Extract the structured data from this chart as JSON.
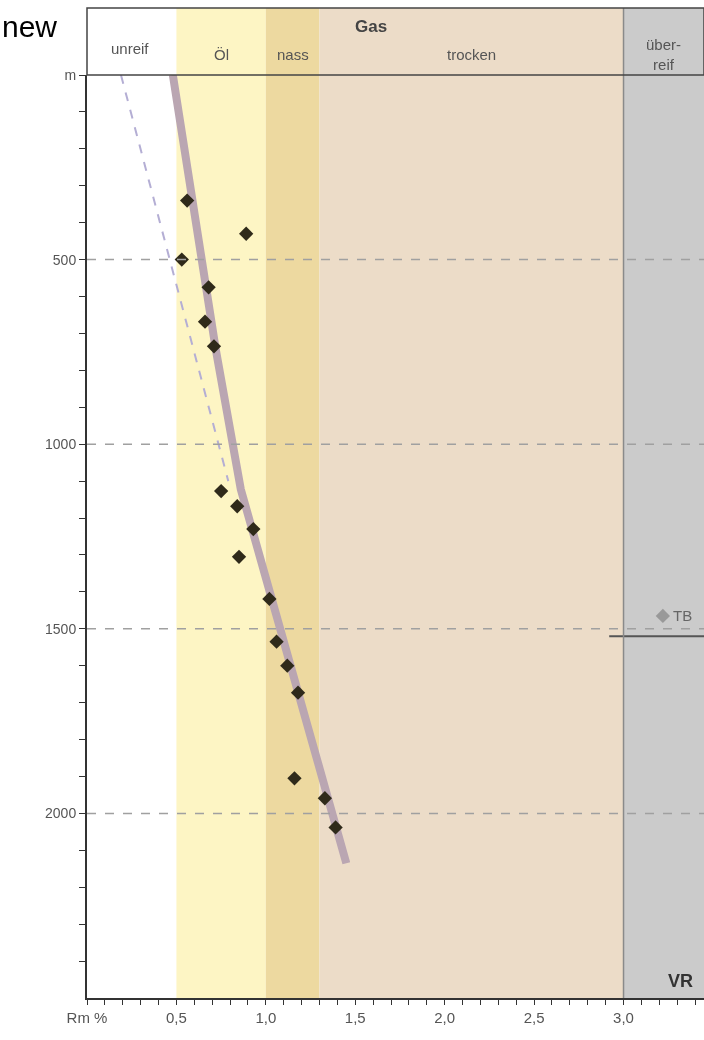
{
  "chart_data": {
    "type": "scatter",
    "xlim": [
      0,
      3.45
    ],
    "ylim": [
      2500,
      0
    ],
    "xticks": [
      {
        "value": 0,
        "label": "Rm %"
      },
      {
        "value": 0.1,
        "label": null
      },
      {
        "value": 0.2,
        "label": null
      },
      {
        "value": 0.3,
        "label": null
      },
      {
        "value": 0.4,
        "label": null
      },
      {
        "value": 0.5,
        "label": "0,5"
      },
      {
        "value": 0.6,
        "label": null
      },
      {
        "value": 0.7,
        "label": null
      },
      {
        "value": 0.8,
        "label": null
      },
      {
        "value": 0.9,
        "label": null
      },
      {
        "value": 1.0,
        "label": "1,0"
      },
      {
        "value": 1.1,
        "label": null
      },
      {
        "value": 1.2,
        "label": null
      },
      {
        "value": 1.3,
        "label": null
      },
      {
        "value": 1.4,
        "label": null
      },
      {
        "value": 1.5,
        "label": "1,5"
      },
      {
        "value": 1.6,
        "label": null
      },
      {
        "value": 1.7,
        "label": null
      },
      {
        "value": 1.8,
        "label": null
      },
      {
        "value": 1.9,
        "label": null
      },
      {
        "value": 2.0,
        "label": "2,0"
      },
      {
        "value": 2.1,
        "label": null
      },
      {
        "value": 2.2,
        "label": null
      },
      {
        "value": 2.3,
        "label": null
      },
      {
        "value": 2.4,
        "label": null
      },
      {
        "value": 2.5,
        "label": "2,5"
      },
      {
        "value": 2.6,
        "label": null
      },
      {
        "value": 2.7,
        "label": null
      },
      {
        "value": 2.8,
        "label": null
      },
      {
        "value": 2.9,
        "label": null
      },
      {
        "value": 3.0,
        "label": "3,0"
      },
      {
        "value": 3.1,
        "label": null
      },
      {
        "value": 3.2,
        "label": null
      },
      {
        "value": 3.3,
        "label": null
      },
      {
        "value": 3.4,
        "label": null
      }
    ],
    "yticks": [
      {
        "value": 0,
        "label": "m"
      },
      {
        "value": 100,
        "label": null
      },
      {
        "value": 200,
        "label": null
      },
      {
        "value": 300,
        "label": null
      },
      {
        "value": 400,
        "label": null
      },
      500,
      {
        "value": 600,
        "label": null
      },
      {
        "value": 700,
        "label": null
      },
      {
        "value": 800,
        "label": null
      },
      {
        "value": 900,
        "label": null
      },
      1000,
      {
        "value": 1100,
        "label": null
      },
      {
        "value": 1200,
        "label": null
      },
      {
        "value": 1300,
        "label": null
      },
      {
        "value": 1400,
        "label": null
      },
      1500,
      {
        "value": 1600,
        "label": null
      },
      {
        "value": 1700,
        "label": null
      },
      {
        "value": 1800,
        "label": null
      },
      {
        "value": 1900,
        "label": null
      },
      2000,
      {
        "value": 2100,
        "label": null
      },
      {
        "value": 2200,
        "label": null
      },
      {
        "value": 2300,
        "label": null
      },
      {
        "value": 2400,
        "label": null
      }
    ],
    "bands": [
      {
        "axis": "x",
        "from": 0.5,
        "to": 1.0,
        "label": "Öl",
        "color": "#fdf5c4"
      },
      {
        "axis": "x",
        "from": 1.0,
        "to": 1.3,
        "label": "nass",
        "color": "#edd9a0"
      },
      {
        "axis": "x",
        "from": 1.3,
        "to": 3.0,
        "label": "trocken",
        "color": "#ecdcc8"
      },
      {
        "axis": "x",
        "from": 3.0,
        "to": 3.45,
        "label": "über-\nreif",
        "color": "#cbcbcb"
      }
    ],
    "ref_lines": [
      {
        "axis": "x",
        "value": 3.0,
        "label": null,
        "color": "#8a8a8a",
        "line_style": "solid"
      },
      {
        "axis": "y",
        "value": 500,
        "label": null,
        "color": "#a0a0a0",
        "line_style": "dashed"
      },
      {
        "axis": "y",
        "value": 1000,
        "label": null,
        "color": "#a0a0a0",
        "line_style": "dashed"
      },
      {
        "axis": "y",
        "value": 1500,
        "label": null,
        "color": "#a0a0a0",
        "line_style": "dashed"
      },
      {
        "axis": "y",
        "value": 2000,
        "label": null,
        "color": "#a0a0a0",
        "line_style": "dashed"
      }
    ],
    "series": [
      {
        "type": "line",
        "color": "#baa6b2",
        "line_style": "solid",
        "marker": "none",
        "x": [
          0.48,
          0.72,
          0.86,
          1.45
        ],
        "values": [
          0,
          743,
          1122,
          2135
        ]
      },
      {
        "type": "line",
        "color": "#b4aed4",
        "line_style": "dashed",
        "marker": "none",
        "x": [
          0.19,
          0.79
        ],
        "values": [
          0,
          1100
        ]
      },
      {
        "type": "line",
        "color": "#555555",
        "line_style": "solid",
        "marker": "none",
        "x": [
          2.92,
          3.45
        ],
        "values": [
          1520,
          1520
        ]
      },
      {
        "color": "#999999",
        "marker": "diamond",
        "x": [
          3.22
        ],
        "values": [
          1465
        ]
      },
      {
        "color": "#2f2a1a",
        "marker": "diamond",
        "x": [
          0.56,
          0.89,
          0.53,
          0.68,
          0.66,
          0.71,
          0.75,
          0.84,
          0.93,
          0.85,
          1.02,
          1.06,
          1.12,
          1.18,
          1.16,
          1.33,
          1.39
        ],
        "values": [
          340,
          430,
          500,
          575,
          668,
          735,
          1127,
          1168,
          1230,
          1305,
          1419,
          1535,
          1600,
          1673,
          1905,
          1959,
          2038
        ]
      }
    ],
    "annotations": [
      "new",
      "unreif",
      "Gas",
      {
        "text": "TB",
        "x": 3.22,
        "y": 1465
      },
      "VR"
    ]
  }
}
